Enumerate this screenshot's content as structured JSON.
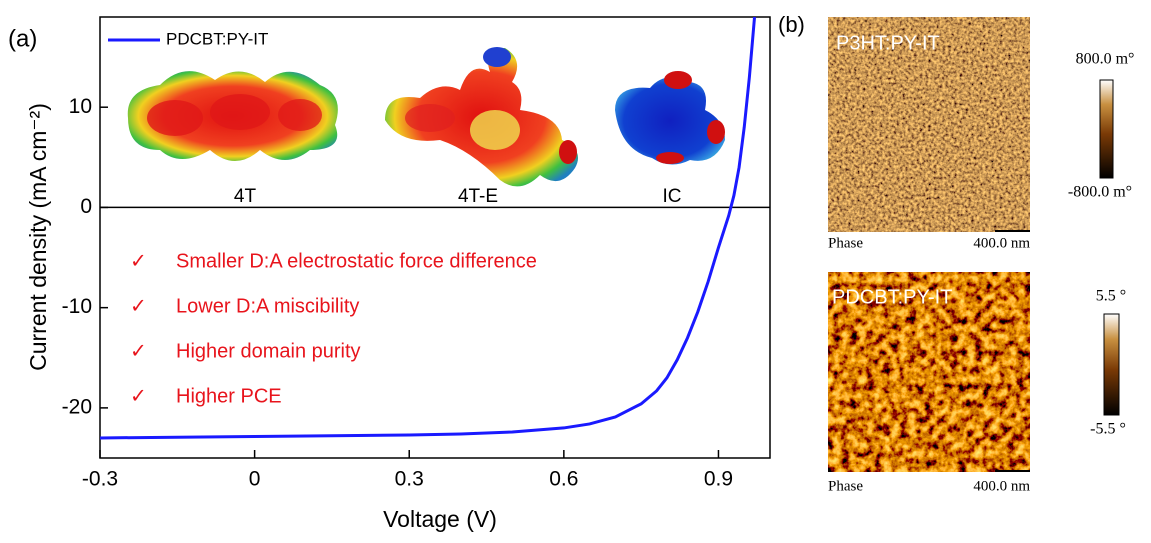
{
  "panel_labels": [
    "(a)",
    "(b)"
  ],
  "chart_data": {
    "type": "line",
    "x_label": "Voltage (V)",
    "y_label": "Current density (mA cm⁻²)",
    "x": [
      -0.3,
      -0.2,
      -0.1,
      0,
      0.1,
      0.2,
      0.3,
      0.4,
      0.5,
      0.6,
      0.65,
      0.7,
      0.75,
      0.78,
      0.8,
      0.82,
      0.84,
      0.86,
      0.88,
      0.9,
      0.92,
      0.93,
      0.94,
      0.95,
      0.96,
      0.97
    ],
    "series": [
      {
        "name": "PDCBT:PY-IT",
        "color": "#1a1aff",
        "values": [
          -23.0,
          -22.95,
          -22.9,
          -22.85,
          -22.8,
          -22.75,
          -22.7,
          -22.6,
          -22.4,
          -22.0,
          -21.6,
          -20.9,
          -19.6,
          -18.3,
          -17.0,
          -15.2,
          -13.0,
          -10.4,
          -7.4,
          -4.0,
          -0.8,
          1.2,
          4.0,
          8.0,
          13.0,
          19.0
        ]
      }
    ],
    "xlim": [
      -0.3,
      1.0
    ],
    "ylim": [
      -25,
      19
    ],
    "xticks": [
      -0.3,
      0,
      0.3,
      0.6,
      0.9
    ],
    "yticks": [
      -20,
      -10,
      0,
      10
    ],
    "legend": "upper left",
    "annotation_marker": "✓",
    "annotations": [
      "Smaller D:A electrostatic force difference",
      "Lower D:A miscibility",
      "Higher domain purity",
      "Higher PCE"
    ],
    "annotation_color": "#e8141c",
    "molecules": [
      "4T",
      "4T-E",
      "IC"
    ]
  },
  "afm": [
    {
      "label": "P3HT:PY-IT",
      "scale_max": "800.0 m°",
      "scale_min": "-800.0 m°",
      "mode": "Phase",
      "scale_bar": "400.0 nm"
    },
    {
      "label": "PDCBT:PY-IT",
      "scale_max": "5.5 °",
      "scale_min": "-5.5 °",
      "mode": "Phase",
      "scale_bar": "400.0 nm"
    }
  ]
}
